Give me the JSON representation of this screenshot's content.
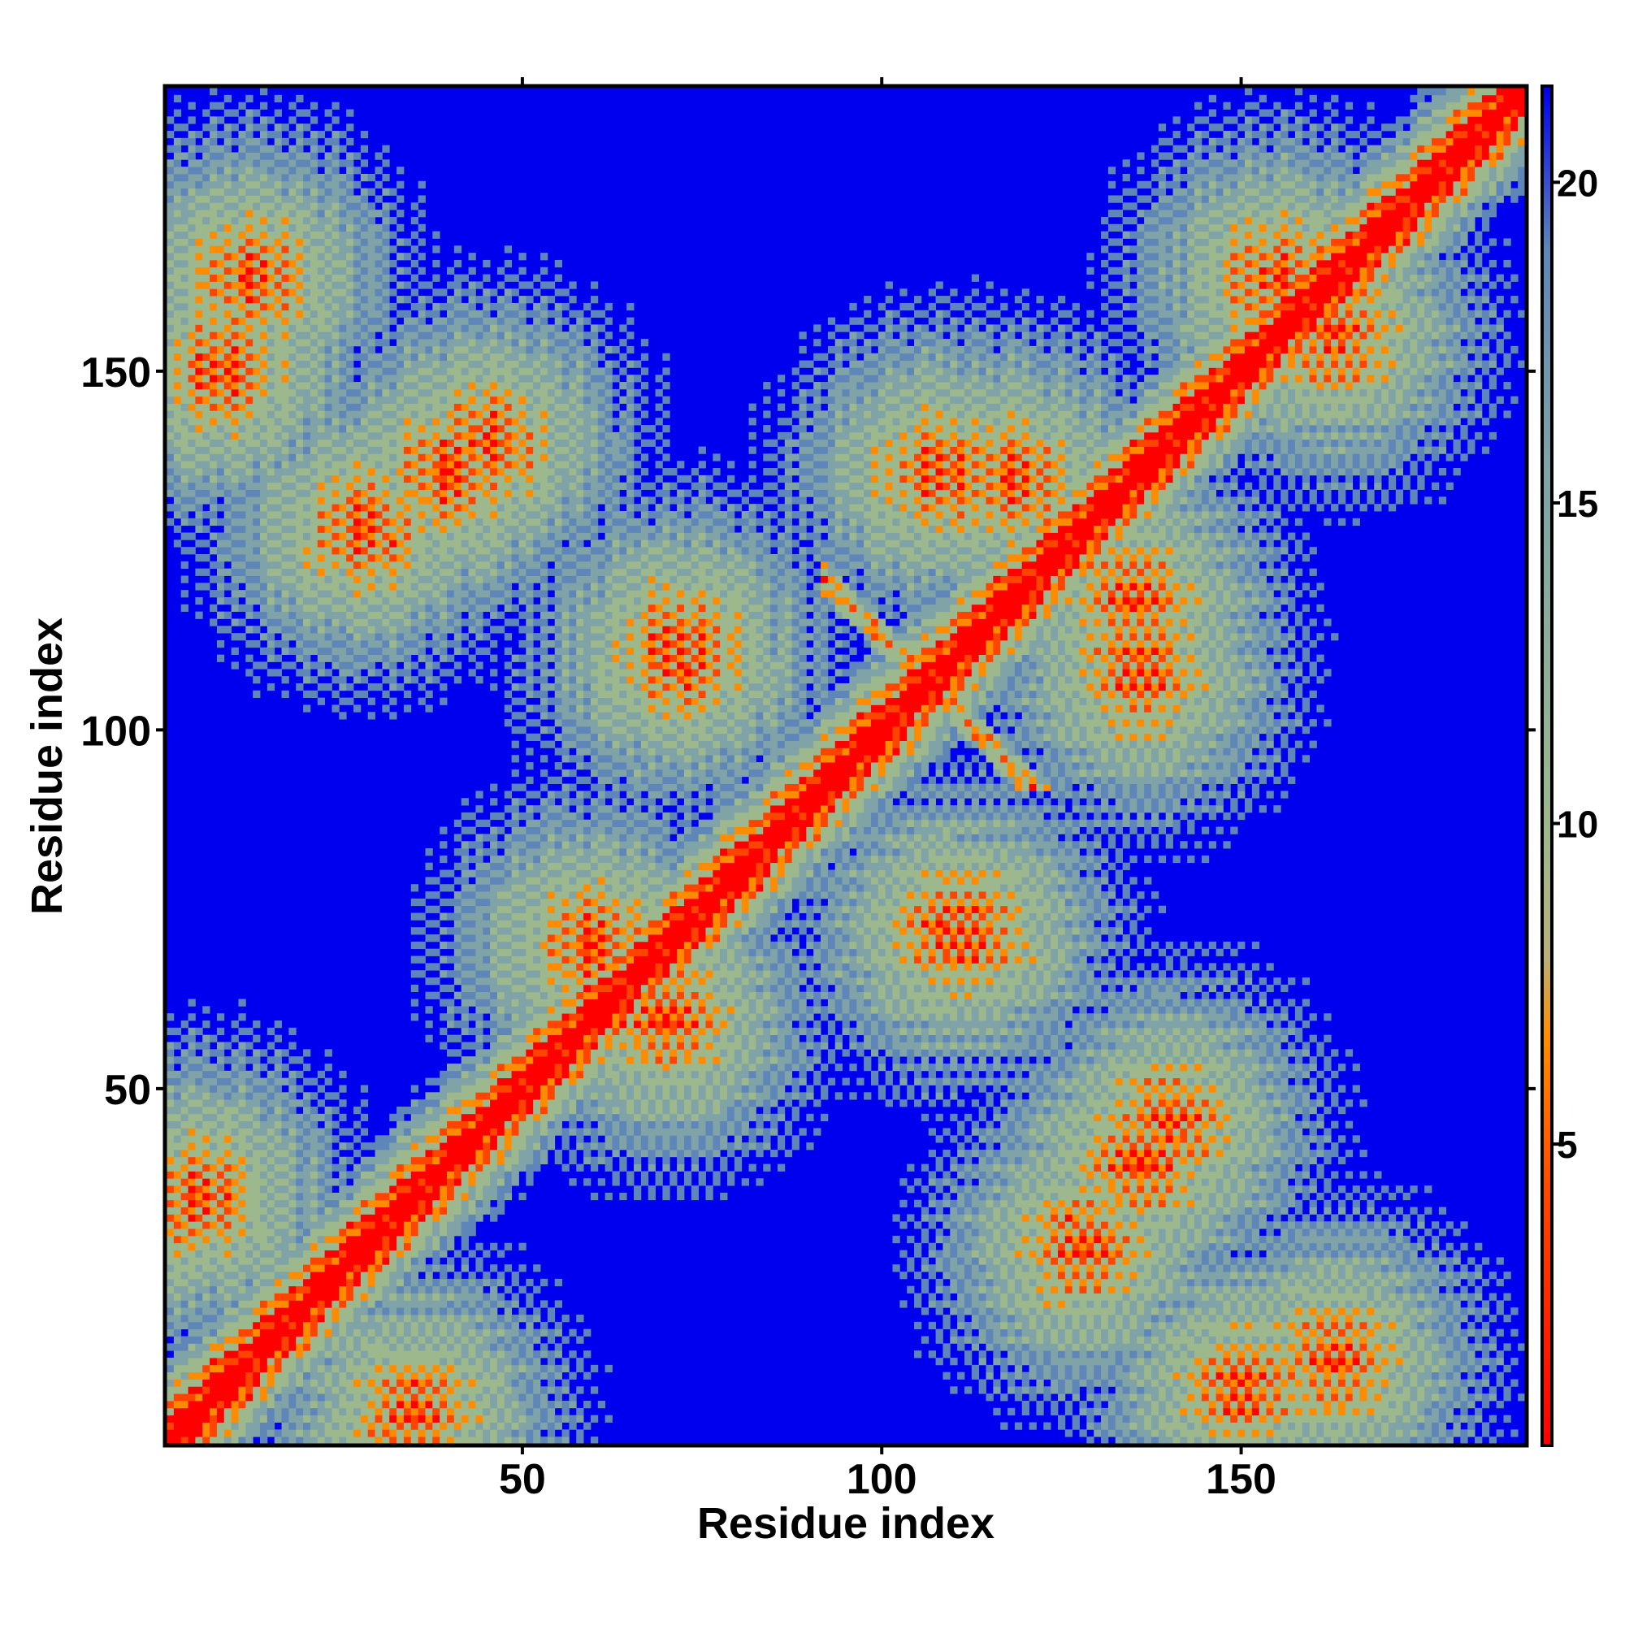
{
  "chart_data": {
    "type": "heatmap",
    "title": "",
    "xlabel": "Residue index",
    "ylabel": "Residue index",
    "xlim": [
      0.5,
      189.5
    ],
    "ylim": [
      0.5,
      189.5
    ],
    "n_residues": 189,
    "x_ticks": [
      50,
      100,
      150
    ],
    "x_tick_labels": [
      "50",
      "100",
      "150"
    ],
    "y_ticks": [
      50,
      100,
      150
    ],
    "y_tick_labels": [
      "50",
      "100",
      "150"
    ],
    "colorbar": {
      "range": [
        0.3,
        21.5
      ],
      "ticks": [
        5,
        10,
        15,
        20
      ],
      "tick_labels": [
        "5",
        "10",
        "15",
        "20"
      ],
      "position": "right",
      "colors": {
        "near": "#ff0000",
        "mid": "#ff8c00",
        "far": "#9db88d",
        "distant": "#5f86b8",
        "background": "#0000ee"
      }
    },
    "features": {
      "diagonal": "residue i vs i, distance ~0 (red band along the diagonal)",
      "anti_diagonal_contacts": [
        {
          "from": [
            93,
            120
          ],
          "to": [
            120,
            93
          ]
        }
      ],
      "contact_clusters": [
        [
          5,
          35
        ],
        [
          35,
          5
        ],
        [
          12,
          163
        ],
        [
          163,
          12
        ],
        [
          40,
          136
        ],
        [
          136,
          40
        ],
        [
          28,
          128
        ],
        [
          128,
          28
        ],
        [
          70,
          60
        ],
        [
          60,
          70
        ],
        [
          72,
          112
        ],
        [
          112,
          72
        ],
        [
          108,
          136
        ],
        [
          136,
          108
        ],
        [
          140,
          45
        ],
        [
          45,
          140
        ],
        [
          163,
          155
        ],
        [
          155,
          163
        ],
        [
          150,
          8
        ],
        [
          8,
          150
        ],
        [
          135,
          118
        ],
        [
          118,
          135
        ],
        [
          110,
          72
        ],
        [
          72,
          110
        ]
      ]
    }
  }
}
